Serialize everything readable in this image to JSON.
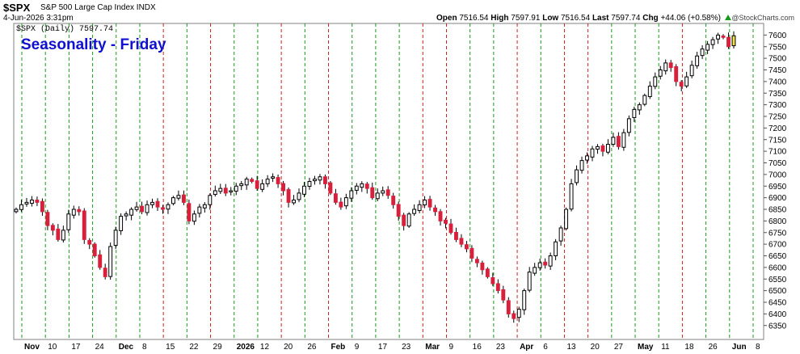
{
  "header": {
    "symbol": "$SPX",
    "description": "S&P 500 Large Cap Index  INDX",
    "timestamp": "4-Jun-2026 3:31pm",
    "copyright": "@StockCharts.com",
    "open_label": "Open",
    "open": "7516.54",
    "high_label": "High",
    "high": "7597.91",
    "low_label": "Low",
    "low": "7516.54",
    "last_label": "Last",
    "last": "7597.74",
    "chg_label": "Chg",
    "chg": "+44.06 (+0.58%)"
  },
  "chart_data": {
    "type": "candlestick",
    "title": "Seasonality - Friday",
    "subtitle": "$SPX (Daily) 7597.74",
    "ylim": [
      6290,
      7650
    ],
    "y_ticks": [
      6350,
      6400,
      6450,
      6500,
      6550,
      6600,
      6650,
      6700,
      6750,
      6800,
      6850,
      6900,
      6950,
      7000,
      7050,
      7100,
      7150,
      7200,
      7250,
      7300,
      7350,
      7400,
      7450,
      7500,
      7550,
      7600
    ],
    "x_ticks": [
      {
        "label": "Nov",
        "bold": true
      },
      {
        "label": "10"
      },
      {
        "label": "17"
      },
      {
        "label": "24"
      },
      {
        "label": "Dec",
        "bold": true
      },
      {
        "label": "8"
      },
      {
        "label": "15"
      },
      {
        "label": "22"
      },
      {
        "label": "29"
      },
      {
        "label": "2026",
        "bold": true
      },
      {
        "label": "12"
      },
      {
        "label": "20"
      },
      {
        "label": "26"
      },
      {
        "label": "Feb",
        "bold": true
      },
      {
        "label": "9"
      },
      {
        "label": "17"
      },
      {
        "label": "23"
      },
      {
        "label": "Mar",
        "bold": true
      },
      {
        "label": "9"
      },
      {
        "label": "16"
      },
      {
        "label": "23"
      },
      {
        "label": "Apr",
        "bold": true
      },
      {
        "label": "6"
      },
      {
        "label": "13"
      },
      {
        "label": "20"
      },
      {
        "label": "27"
      },
      {
        "label": "May",
        "bold": true
      },
      {
        "label": "11"
      },
      {
        "label": "18"
      },
      {
        "label": "26"
      },
      {
        "label": "Jun",
        "bold": true
      },
      {
        "label": "8"
      }
    ],
    "friday_lines": [
      {
        "index": 0,
        "color": "green"
      },
      {
        "index": 1,
        "color": "green"
      },
      {
        "index": 2,
        "color": "green"
      },
      {
        "index": 3,
        "color": "green"
      },
      {
        "index": 4,
        "color": "green"
      },
      {
        "index": 5,
        "color": "green"
      },
      {
        "index": 6,
        "color": "red"
      },
      {
        "index": 7,
        "color": "green"
      },
      {
        "index": 8,
        "color": "red"
      },
      {
        "index": 9,
        "color": "green"
      },
      {
        "index": 10,
        "color": "green"
      },
      {
        "index": 11,
        "color": "red"
      },
      {
        "index": 12,
        "color": "green"
      },
      {
        "index": 13,
        "color": "red"
      },
      {
        "index": 14,
        "color": "green"
      },
      {
        "index": 15,
        "color": "green"
      },
      {
        "index": 16,
        "color": "green"
      },
      {
        "index": 17,
        "color": "red"
      },
      {
        "index": 18,
        "color": "red"
      },
      {
        "index": 19,
        "color": "green"
      },
      {
        "index": 20,
        "color": "green"
      },
      {
        "index": 21,
        "color": "red"
      },
      {
        "index": 22,
        "color": "green"
      },
      {
        "index": 23,
        "color": "red"
      },
      {
        "index": 24,
        "color": "red"
      },
      {
        "index": 25,
        "color": "green"
      },
      {
        "index": 26,
        "color": "green"
      },
      {
        "index": 27,
        "color": "green"
      },
      {
        "index": 28,
        "color": "red"
      },
      {
        "index": 29,
        "color": "green"
      },
      {
        "index": 30,
        "color": "green"
      },
      {
        "index": 31,
        "color": "green"
      }
    ],
    "closes": [
      6850,
      6870,
      6880,
      6890,
      6880,
      6840,
      6780,
      6760,
      6720,
      6760,
      6830,
      6850,
      6840,
      6720,
      6700,
      6650,
      6600,
      6560,
      6690,
      6760,
      6820,
      6830,
      6850,
      6860,
      6840,
      6870,
      6880,
      6860,
      6850,
      6870,
      6900,
      6910,
      6880,
      6800,
      6830,
      6860,
      6870,
      6910,
      6930,
      6940,
      6920,
      6930,
      6950,
      6960,
      6980,
      6970,
      6940,
      6960,
      6980,
      6990,
      6960,
      6930,
      6880,
      6890,
      6920,
      6950,
      6970,
      6980,
      6990,
      6960,
      6920,
      6880,
      6860,
      6900,
      6930,
      6950,
      6960,
      6940,
      6900,
      6920,
      6930,
      6910,
      6870,
      6820,
      6780,
      6830,
      6850,
      6870,
      6890,
      6860,
      6840,
      6800,
      6790,
      6750,
      6720,
      6700,
      6680,
      6640,
      6620,
      6590,
      6560,
      6530,
      6500,
      6460,
      6400,
      6380,
      6420,
      6500,
      6580,
      6600,
      6620,
      6610,
      6650,
      6710,
      6770,
      6850,
      6960,
      7020,
      7060,
      7080,
      7110,
      7120,
      7100,
      7130,
      7160,
      7120,
      7180,
      7240,
      7280,
      7300,
      7340,
      7380,
      7420,
      7450,
      7480,
      7460,
      7400,
      7380,
      7420,
      7470,
      7510,
      7540,
      7560,
      7580,
      7600,
      7590,
      7550,
      7597
    ]
  }
}
